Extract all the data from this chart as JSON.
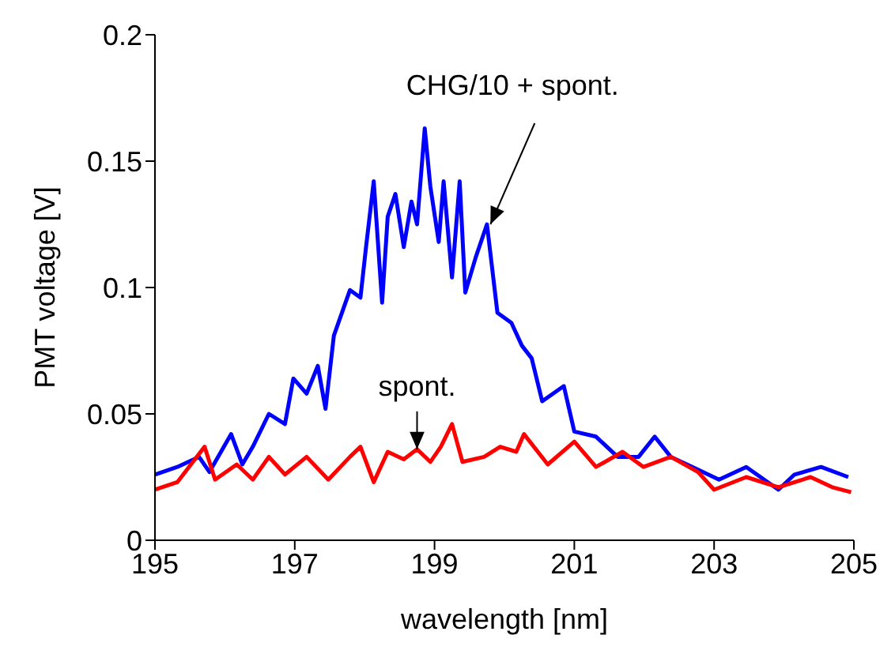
{
  "chart_data": {
    "type": "line",
    "xlabel": "wavelength [nm]",
    "ylabel": "PMT voltage [V]",
    "xlim": [
      195,
      205
    ],
    "xticks": [
      195,
      197,
      199,
      201,
      203,
      205
    ],
    "ylim": [
      0,
      0.2
    ],
    "yticks": [
      0,
      0.05,
      0.1,
      0.15,
      0.2
    ],
    "grid": false,
    "legend": false,
    "marker": "none",
    "line_style": "solid",
    "annotations": [
      {
        "text": "CHG/10 + spont.",
        "x": 199.8,
        "y": 0.125
      },
      {
        "text": "spont.",
        "x": 198.75,
        "y": 0.036
      }
    ],
    "series": [
      {
        "color": "#0000ff",
        "x": [
          195.0,
          195.32,
          195.63,
          195.78,
          196.09,
          196.25,
          196.4,
          196.63,
          196.86,
          196.98,
          197.17,
          197.33,
          197.44,
          197.56,
          197.79,
          197.94,
          198.02,
          198.13,
          198.25,
          198.33,
          198.44,
          198.56,
          198.67,
          198.75,
          198.86,
          198.94,
          199.06,
          199.13,
          199.25,
          199.36,
          199.44,
          199.59,
          199.75,
          199.9,
          200.1,
          200.25,
          200.39,
          200.54,
          200.85,
          201.0,
          201.31,
          201.62,
          201.92,
          202.15,
          202.38,
          202.69,
          203.07,
          203.46,
          203.92,
          204.15,
          204.53,
          204.92
        ],
        "values": [
          0.026,
          0.029,
          0.033,
          0.027,
          0.042,
          0.03,
          0.037,
          0.05,
          0.046,
          0.064,
          0.058,
          0.069,
          0.052,
          0.081,
          0.099,
          0.096,
          0.116,
          0.142,
          0.094,
          0.128,
          0.137,
          0.116,
          0.134,
          0.125,
          0.163,
          0.14,
          0.118,
          0.142,
          0.104,
          0.142,
          0.098,
          0.112,
          0.125,
          0.09,
          0.086,
          0.077,
          0.072,
          0.055,
          0.061,
          0.043,
          0.041,
          0.033,
          0.033,
          0.041,
          0.033,
          0.029,
          0.024,
          0.029,
          0.02,
          0.026,
          0.029,
          0.025
        ]
      },
      {
        "color": "#ff0000",
        "x": [
          195.0,
          195.32,
          195.71,
          195.86,
          196.17,
          196.4,
          196.63,
          196.86,
          197.17,
          197.48,
          197.79,
          197.94,
          198.13,
          198.33,
          198.56,
          198.75,
          198.94,
          199.09,
          199.25,
          199.4,
          199.71,
          199.94,
          200.17,
          200.28,
          200.62,
          201.0,
          201.31,
          201.69,
          201.99,
          202.38,
          202.77,
          203.0,
          203.46,
          203.92,
          204.38,
          204.69,
          204.96
        ],
        "values": [
          0.02,
          0.023,
          0.037,
          0.024,
          0.03,
          0.024,
          0.033,
          0.026,
          0.033,
          0.024,
          0.033,
          0.037,
          0.023,
          0.035,
          0.032,
          0.036,
          0.031,
          0.037,
          0.046,
          0.031,
          0.033,
          0.037,
          0.035,
          0.042,
          0.03,
          0.039,
          0.029,
          0.035,
          0.029,
          0.033,
          0.027,
          0.02,
          0.025,
          0.021,
          0.025,
          0.021,
          0.019
        ]
      }
    ]
  }
}
